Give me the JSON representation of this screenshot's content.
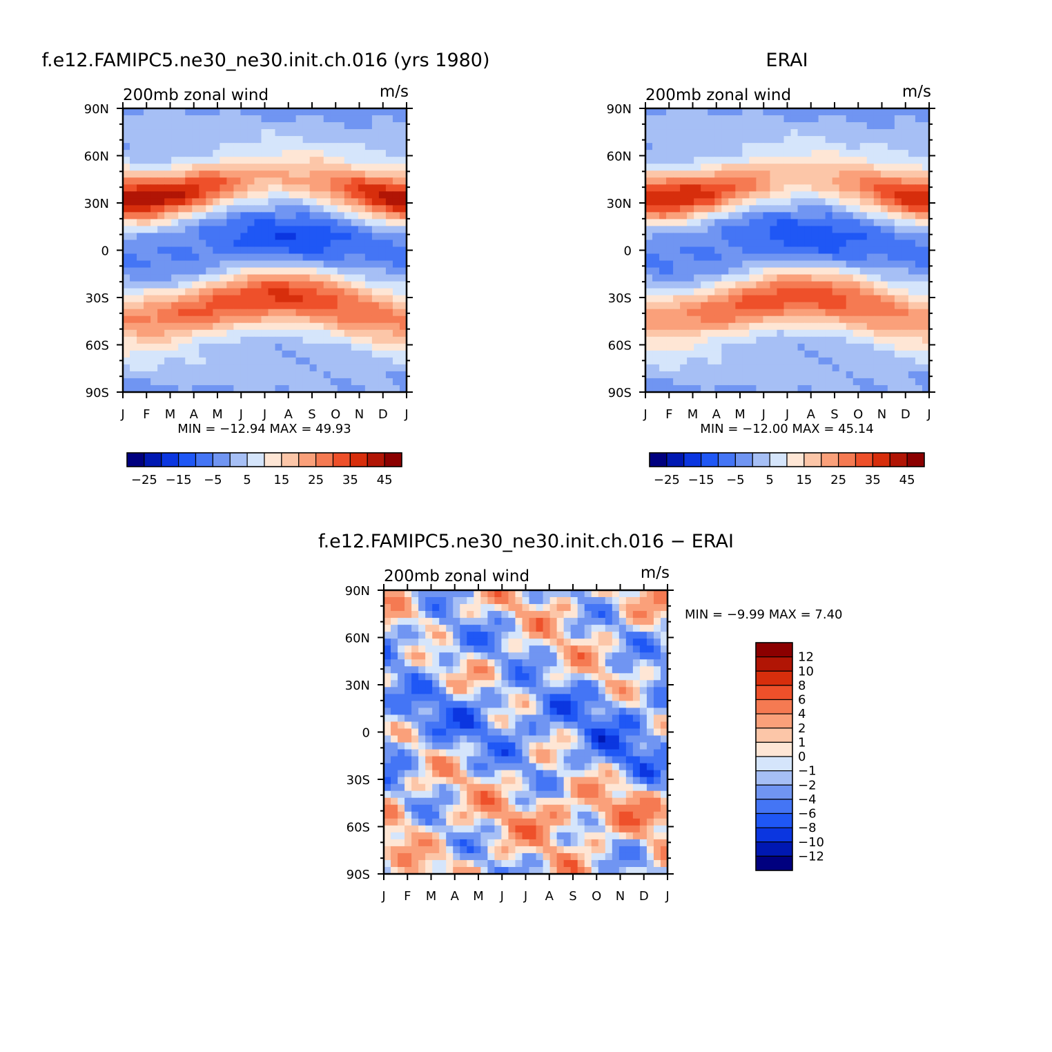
{
  "colors": {
    "full_scale": [
      "#00007f",
      "#0018b2",
      "#0b36e0",
      "#1f57f5",
      "#4475f5",
      "#7095f2",
      "#a6bff5",
      "#d5e5fb",
      "#fee6d5",
      "#fcc6a8",
      "#faa07a",
      "#f57a52",
      "#ee502a",
      "#d72e0c",
      "#b11505",
      "#8b0000"
    ],
    "diff_scale": [
      "#00007f",
      "#0018b2",
      "#0b36e0",
      "#1f57f5",
      "#4475f5",
      "#7095f2",
      "#a6bff5",
      "#d5e5fb",
      "#fee6d5",
      "#fcc6a8",
      "#faa07a",
      "#f57a52",
      "#ee502a",
      "#d72e0c",
      "#b11505",
      "#8b0000"
    ]
  },
  "panels": {
    "model": {
      "title": "f.e12.FAMIPC5.ne30_ne30.init.ch.016 (yrs 1980)",
      "subtitle_left": "200mb zonal wind",
      "subtitle_right": "m/s",
      "stats": "MIN = −12.94 MAX =   49.93",
      "colorbar_labels": [
        "−25",
        "−15",
        "−5",
        "5",
        "15",
        "25",
        "35",
        "45"
      ]
    },
    "obs": {
      "title": "ERAI",
      "subtitle_left": "200mb zonal wind",
      "subtitle_right": "m/s",
      "stats": "MIN = −12.00 MAX =   45.14",
      "colorbar_labels": [
        "−25",
        "−15",
        "−5",
        "5",
        "15",
        "25",
        "35",
        "45"
      ]
    },
    "diff": {
      "title": "f.e12.FAMIPC5.ne30_ne30.init.ch.016 − ERAI",
      "subtitle_left": "200mb zonal wind",
      "subtitle_right": "m/s",
      "stats": "MIN =   −9.99 MAX =     7.40",
      "colorbar_labels": [
        "12",
        "10",
        "8",
        "6",
        "4",
        "2",
        "1",
        "0",
        "−1",
        "−2",
        "−4",
        "−6",
        "−8",
        "−10",
        "−12"
      ]
    }
  },
  "chart_data": [
    {
      "type": "heatmap",
      "name": "model",
      "title": "f.e12.FAMIPC5.ne30_ne30.init.ch.016 (yrs 1980)",
      "variable": "200mb zonal wind",
      "units": "m/s",
      "x_tick_labels": [
        "J",
        "F",
        "M",
        "A",
        "M",
        "J",
        "J",
        "A",
        "S",
        "O",
        "N",
        "D",
        "J"
      ],
      "y_tick_labels": [
        "90N",
        "60N",
        "30N",
        "0",
        "30S",
        "60S",
        "90S"
      ],
      "y_range": [
        -90,
        90
      ],
      "min": -12.94,
      "max": 49.93,
      "contour_levels": [
        -30,
        -25,
        -20,
        -15,
        -10,
        -5,
        0,
        5,
        10,
        15,
        20,
        25,
        30,
        35,
        40,
        45,
        50
      ],
      "field": {
        "jet_n_winter": 48,
        "jet_n_summer": 22,
        "easterly_eq_summer": -12,
        "jet_s_winter": 40,
        "jet_s_summer": 28,
        "polar": 5
      }
    },
    {
      "type": "heatmap",
      "name": "obs",
      "title": "ERAI",
      "variable": "200mb zonal wind",
      "units": "m/s",
      "x_tick_labels": [
        "J",
        "F",
        "M",
        "A",
        "M",
        "J",
        "J",
        "A",
        "S",
        "O",
        "N",
        "D",
        "J"
      ],
      "y_tick_labels": [
        "90N",
        "60N",
        "30N",
        "0",
        "30S",
        "60S",
        "90S"
      ],
      "y_range": [
        -90,
        90
      ],
      "min": -12.0,
      "max": 45.14,
      "contour_levels": [
        -30,
        -25,
        -20,
        -15,
        -10,
        -5,
        0,
        5,
        10,
        15,
        20,
        25,
        30,
        35,
        40,
        45,
        50
      ],
      "field": {
        "jet_n_winter": 44,
        "jet_n_summer": 21,
        "easterly_eq_summer": -11,
        "jet_s_winter": 38,
        "jet_s_summer": 26,
        "polar": 5
      }
    },
    {
      "type": "heatmap",
      "name": "difference",
      "title": "f.e12.FAMIPC5.ne30_ne30.init.ch.016 − ERAI",
      "variable": "200mb zonal wind",
      "units": "m/s",
      "x_tick_labels": [
        "J",
        "F",
        "M",
        "A",
        "M",
        "J",
        "J",
        "A",
        "S",
        "O",
        "N",
        "D",
        "J"
      ],
      "y_tick_labels": [
        "90N",
        "60N",
        "30N",
        "0",
        "30S",
        "60S",
        "90S"
      ],
      "y_range": [
        -90,
        90
      ],
      "min": -9.99,
      "max": 7.4,
      "contour_levels": [
        -14,
        -12,
        -10,
        -8,
        -6,
        -4,
        -2,
        -1,
        0,
        1,
        2,
        4,
        6,
        8,
        10,
        12,
        14
      ]
    }
  ]
}
